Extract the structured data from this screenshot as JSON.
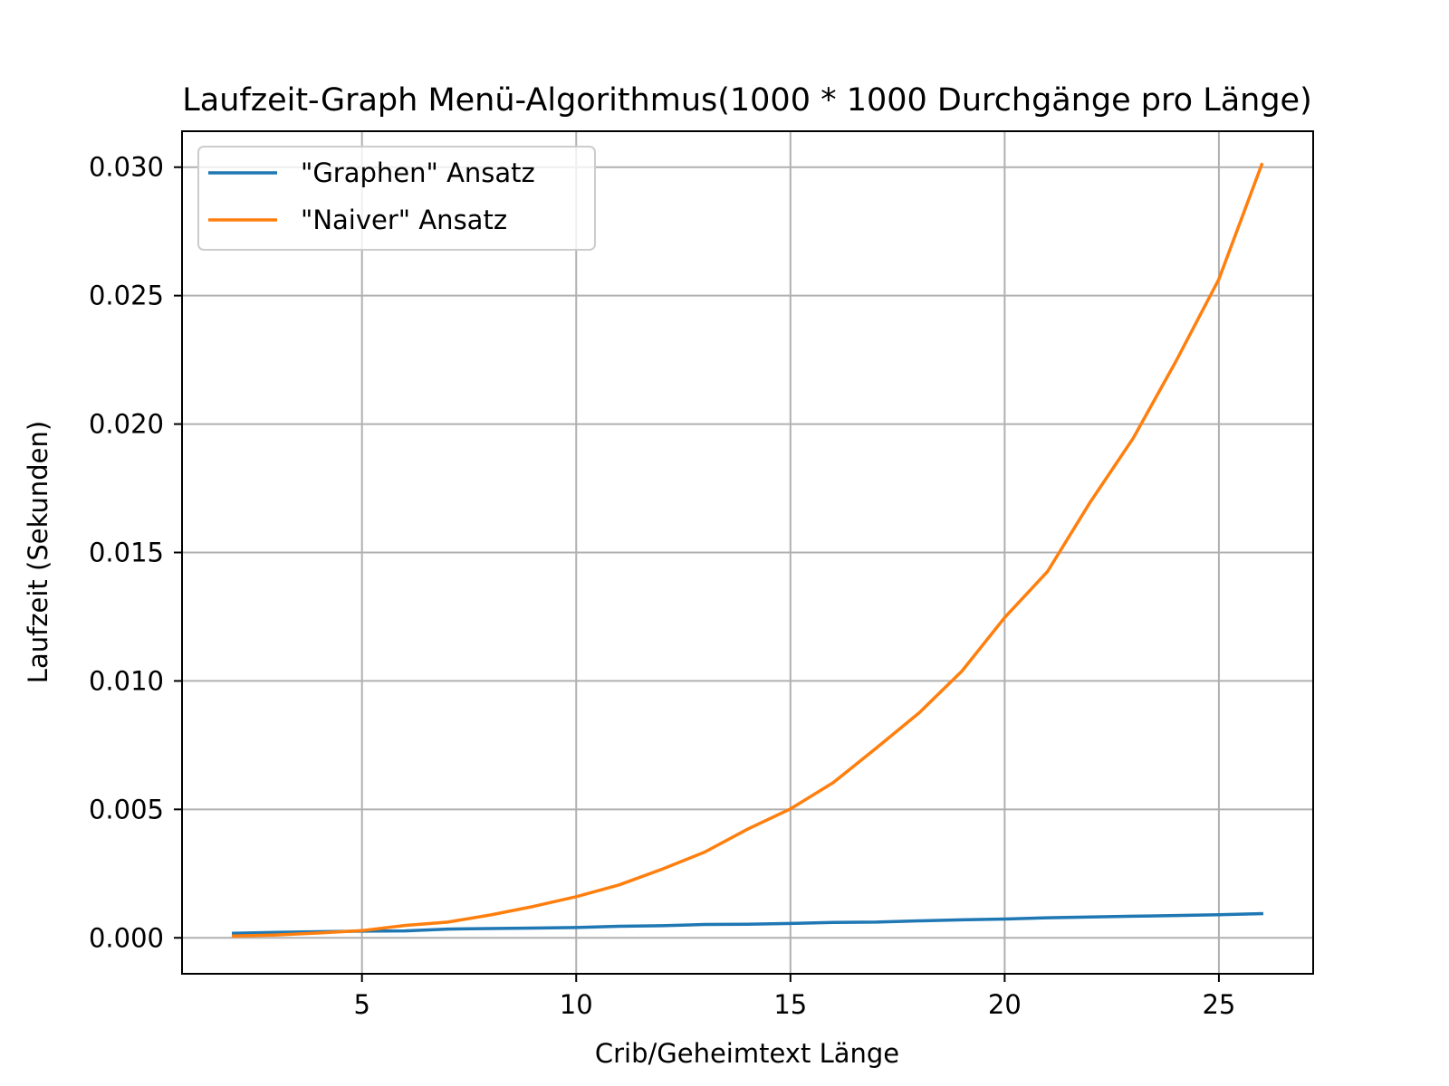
{
  "chart_data": {
    "type": "line",
    "title": "Laufzeit-Graph Menü-Algorithmus(1000 * 1000 Durchgänge pro Länge)",
    "xlabel": "Crib/Geheimtext Länge",
    "ylabel": "Laufzeit (Sekunden)",
    "xlim": [
      0.8,
      27.2
    ],
    "ylim": [
      -0.0014,
      0.0314
    ],
    "xticks": [
      5,
      10,
      15,
      20,
      25
    ],
    "xtick_labels": [
      "5",
      "10",
      "15",
      "20",
      "25"
    ],
    "yticks": [
      0.0,
      0.005,
      0.01,
      0.015,
      0.02,
      0.025,
      0.03
    ],
    "ytick_labels": [
      "0.000",
      "0.005",
      "0.010",
      "0.015",
      "0.020",
      "0.025",
      "0.030"
    ],
    "grid": true,
    "legend": "upper left",
    "x": [
      2,
      3,
      4,
      5,
      6,
      7,
      8,
      9,
      10,
      11,
      12,
      13,
      14,
      15,
      16,
      17,
      18,
      19,
      20,
      21,
      22,
      23,
      24,
      25,
      26
    ],
    "series": [
      {
        "name": "\"Graphen\" Ansatz",
        "color": "#1f77b4",
        "values": [
          0.00018,
          0.00021,
          0.00024,
          0.00026,
          0.00027,
          0.00034,
          0.00036,
          0.00038,
          0.0004,
          0.00045,
          0.00047,
          0.00052,
          0.00053,
          0.00056,
          0.0006,
          0.00061,
          0.00066,
          0.0007,
          0.00073,
          0.00078,
          0.00081,
          0.00084,
          0.00087,
          0.0009,
          0.00094
        ]
      },
      {
        "name": "\"Naiver\" Ansatz",
        "color": "#ff7f0e",
        "values": [
          7e-05,
          0.00011,
          0.00019,
          0.00028,
          0.00048,
          0.00061,
          0.00089,
          0.00122,
          0.0016,
          0.00206,
          0.00267,
          0.00334,
          0.00423,
          0.00502,
          0.00604,
          0.00738,
          0.00875,
          0.01038,
          0.01247,
          0.01426,
          0.01697,
          0.01945,
          0.02245,
          0.02564,
          0.0301
        ]
      }
    ]
  }
}
